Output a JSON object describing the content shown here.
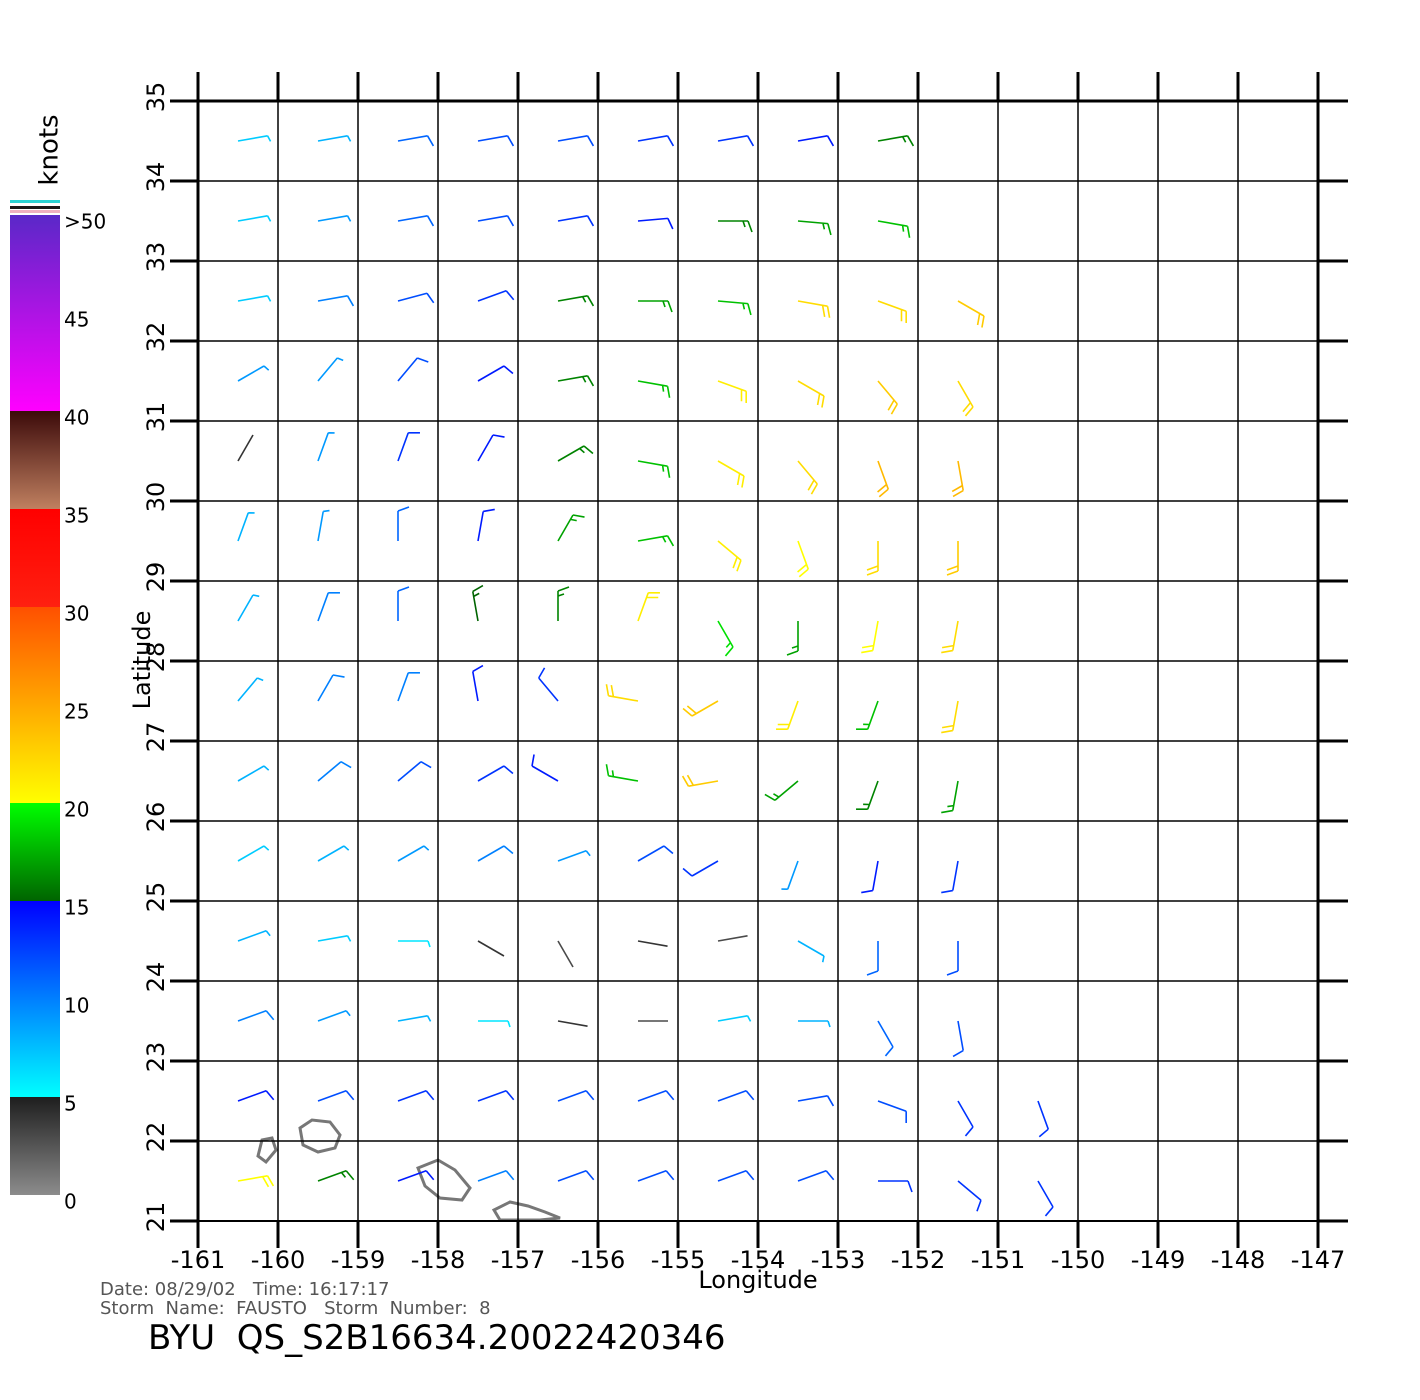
{
  "map": {
    "x_label": "Longitude",
    "y_label": "Latitude",
    "xlim": [
      -161,
      -147
    ],
    "ylim": [
      21,
      35
    ],
    "xticks": [
      -161,
      -160,
      -159,
      -158,
      -157,
      -156,
      -155,
      -154,
      -153,
      -152,
      -151,
      -150,
      -149,
      -148,
      -147
    ],
    "yticks": [
      21,
      22,
      23,
      24,
      25,
      26,
      27,
      28,
      29,
      30,
      31,
      32,
      33,
      34,
      35
    ],
    "grid": true,
    "wind": {
      "lons": [
        -160.5,
        -159.5,
        -158.5,
        -157.5,
        -156.5,
        -155.5,
        -154.5,
        -153.5,
        -152.5,
        -151.5,
        -150.5
      ],
      "lats": [
        34.5,
        33.5,
        32.5,
        31.5,
        30.5,
        29.5,
        28.5,
        27.5,
        26.5,
        25.5,
        24.5,
        23.5,
        22.5,
        21.5
      ],
      "speed": [
        [
          7,
          8,
          11,
          12,
          12,
          13,
          13,
          14,
          16,
          null,
          null
        ],
        [
          7,
          9,
          11,
          12,
          13,
          14,
          16,
          17,
          18,
          null,
          null
        ],
        [
          7,
          10,
          12,
          13,
          16,
          17,
          18,
          22,
          22,
          23,
          null
        ],
        [
          9,
          9,
          12,
          14,
          16,
          18,
          21,
          22,
          23,
          22,
          null
        ],
        [
          4,
          9,
          13,
          14,
          16,
          18,
          21,
          22,
          24,
          24,
          null
        ],
        [
          8,
          9,
          11,
          14,
          17,
          18,
          21,
          20,
          22,
          23,
          null
        ],
        [
          8,
          10,
          11,
          15,
          16,
          21,
          19,
          17,
          20,
          22,
          null
        ],
        [
          8,
          10,
          10,
          14,
          13,
          22,
          23,
          21,
          18,
          22,
          null
        ],
        [
          8,
          10,
          12,
          13,
          14,
          18,
          23,
          17,
          16,
          17,
          null
        ],
        [
          7,
          8,
          9,
          10,
          9,
          12,
          13,
          9,
          14,
          13,
          null
        ],
        [
          8,
          7,
          6,
          4,
          3,
          4,
          3,
          8,
          11,
          12,
          null
        ],
        [
          10,
          9,
          8,
          6,
          4,
          3,
          7,
          8,
          11,
          12,
          null
        ],
        [
          14,
          12,
          13,
          13,
          12,
          12,
          12,
          12,
          12,
          13,
          13
        ],
        [
          20,
          16,
          14,
          10,
          12,
          12,
          12,
          12,
          13,
          13,
          13
        ]
      ],
      "direction": [
        [
          80,
          80,
          80,
          80,
          80,
          80,
          80,
          80,
          80,
          null,
          null
        ],
        [
          80,
          80,
          80,
          80,
          80,
          85,
          90,
          95,
          100,
          null,
          null
        ],
        [
          80,
          80,
          75,
          70,
          80,
          90,
          95,
          100,
          110,
          120,
          null
        ],
        [
          60,
          40,
          40,
          60,
          80,
          100,
          110,
          120,
          140,
          150,
          null
        ],
        [
          30,
          20,
          20,
          30,
          60,
          100,
          120,
          140,
          160,
          170,
          null
        ],
        [
          20,
          10,
          0,
          10,
          30,
          80,
          130,
          160,
          180,
          180,
          null
        ],
        [
          30,
          20,
          0,
          350,
          0,
          20,
          150,
          180,
          190,
          190,
          null
        ],
        [
          40,
          30,
          20,
          350,
          320,
          280,
          240,
          200,
          200,
          190,
          null
        ],
        [
          60,
          50,
          50,
          60,
          300,
          280,
          260,
          230,
          200,
          190,
          null
        ],
        [
          60,
          60,
          60,
          60,
          70,
          60,
          240,
          200,
          190,
          190,
          null
        ],
        [
          70,
          80,
          90,
          120,
          150,
          100,
          80,
          120,
          180,
          180,
          null
        ],
        [
          70,
          70,
          80,
          90,
          100,
          90,
          80,
          90,
          150,
          170,
          null
        ],
        [
          70,
          70,
          70,
          70,
          70,
          70,
          70,
          80,
          110,
          150,
          160
        ],
        [
          80,
          70,
          70,
          70,
          70,
          70,
          70,
          70,
          90,
          130,
          150
        ]
      ]
    }
  },
  "colorbar": {
    "title": "knots",
    "ylim": [
      0,
      50
    ],
    "ticks": [
      {
        "value": 50,
        "label": ">50"
      },
      45,
      40,
      35,
      30,
      25,
      20,
      15,
      10,
      5,
      0
    ],
    "bands": [
      {
        "from": 0,
        "to": 5,
        "colors": [
          "#8c8c8c",
          "#1e1e1e"
        ]
      },
      {
        "from": 5,
        "to": 15,
        "colors": [
          "#00ffff",
          "#0000ff"
        ]
      },
      {
        "from": 15,
        "to": 20,
        "colors": [
          "#006400",
          "#00ff00"
        ]
      },
      {
        "from": 20,
        "to": 30,
        "colors": [
          "#ffff00",
          "#ff5000"
        ]
      },
      {
        "from": 30,
        "to": 35,
        "colors": [
          "#ff2010",
          "#ff0000"
        ]
      },
      {
        "from": 35,
        "to": 40,
        "colors": [
          "#c08060",
          "#3c0a0a"
        ]
      },
      {
        "from": 40,
        "to": 50,
        "colors": [
          "#ff00ff",
          "#5a28c8"
        ]
      }
    ]
  },
  "footer": {
    "date_line": "Date: 08/29/02   Time: 16:17:17",
    "storm_line": "Storm  Name:  FAUSTO   Storm  Number:  8",
    "title": "BYU  QS_S2B16634.20022420346"
  }
}
